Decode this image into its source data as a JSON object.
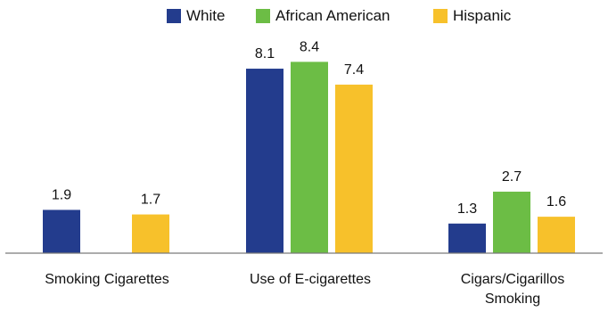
{
  "chart_data": {
    "type": "bar",
    "title": "",
    "xlabel": "",
    "ylabel": "",
    "ylim": [
      0,
      9
    ],
    "grid": false,
    "legend_position": "top-center",
    "categories": [
      [
        "Smoking Cigarettes"
      ],
      [
        "Use of E-cigarettes"
      ],
      [
        "Cigars/Cigarillos",
        "Smoking"
      ]
    ],
    "series": [
      {
        "name": "White",
        "color": "#233c8d",
        "values": [
          1.9,
          8.1,
          1.3
        ],
        "labels": [
          "1.9",
          "8.1",
          "1.3"
        ]
      },
      {
        "name": "African American",
        "color": "#6cbd45",
        "values": [
          null,
          8.4,
          2.7
        ],
        "labels": [
          null,
          "8.4",
          "2.7"
        ]
      },
      {
        "name": "Hispanic",
        "color": "#f7c12b",
        "values": [
          1.7,
          7.4,
          1.6
        ],
        "labels": [
          "1.7",
          "7.4",
          "1.6"
        ]
      }
    ]
  }
}
